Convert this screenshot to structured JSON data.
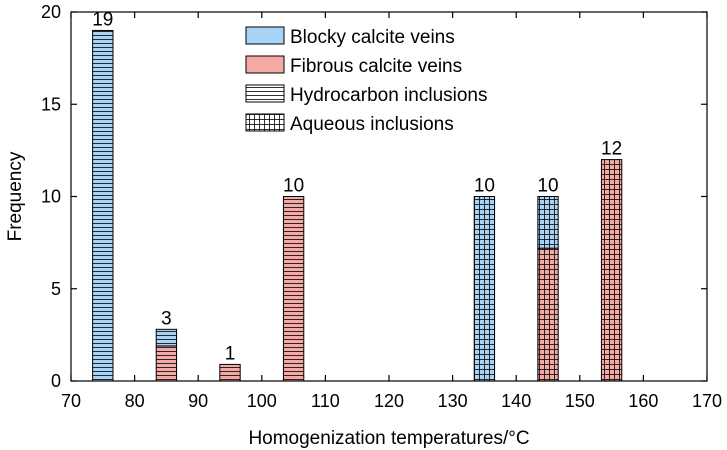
{
  "chart_data": {
    "type": "bar",
    "xlabel": "Homogenization temperatures/°C",
    "ylabel": "Frequency",
    "xlim": [
      70,
      170
    ],
    "ylim": [
      0,
      20
    ],
    "xticks": [
      70,
      80,
      90,
      100,
      110,
      120,
      130,
      140,
      150,
      160,
      170
    ],
    "yticks": [
      0,
      5,
      10,
      15,
      20
    ],
    "grid": false,
    "legend_position": "top-center",
    "legend": [
      {
        "label": "Blocky calcite veins",
        "kind": "fill",
        "color": "#a9d3f5"
      },
      {
        "label": "Fibrous calcite veins",
        "kind": "fill",
        "color": "#f3aaa5"
      },
      {
        "label": "Hydrocarbon inclusions",
        "kind": "hatch",
        "pattern": "horizontal-lines"
      },
      {
        "label": "Aqueous inclusions",
        "kind": "hatch",
        "pattern": "grid"
      }
    ],
    "bars": [
      {
        "x": 75,
        "total": 19,
        "label": "19",
        "segments": [
          {
            "vein": "Blocky calcite veins",
            "inclusion": "Hydrocarbon inclusions",
            "value": 19
          }
        ]
      },
      {
        "x": 85,
        "total": 2.8,
        "label": "3",
        "segments": [
          {
            "vein": "Fibrous calcite veins",
            "inclusion": "Hydrocarbon inclusions",
            "value": 1.9
          },
          {
            "vein": "Blocky calcite veins",
            "inclusion": "Hydrocarbon inclusions",
            "value": 0.9
          }
        ]
      },
      {
        "x": 95,
        "total": 0.9,
        "label": "1",
        "segments": [
          {
            "vein": "Fibrous calcite veins",
            "inclusion": "Hydrocarbon inclusions",
            "value": 0.9
          }
        ]
      },
      {
        "x": 105,
        "total": 10,
        "label": "10",
        "segments": [
          {
            "vein": "Fibrous calcite veins",
            "inclusion": "Hydrocarbon inclusions",
            "value": 10
          }
        ]
      },
      {
        "x": 135,
        "total": 10,
        "label": "10",
        "segments": [
          {
            "vein": "Blocky calcite veins",
            "inclusion": "Aqueous inclusions",
            "value": 10
          }
        ]
      },
      {
        "x": 145,
        "total": 10,
        "label": "10",
        "segments": [
          {
            "vein": "Fibrous calcite veins",
            "inclusion": "Aqueous inclusions",
            "value": 7.2
          },
          {
            "vein": "Blocky calcite veins",
            "inclusion": "Aqueous inclusions",
            "value": 2.8
          }
        ]
      },
      {
        "x": 155,
        "total": 12,
        "label": "12",
        "segments": [
          {
            "vein": "Fibrous calcite veins",
            "inclusion": "Aqueous inclusions",
            "value": 12
          }
        ]
      }
    ]
  }
}
